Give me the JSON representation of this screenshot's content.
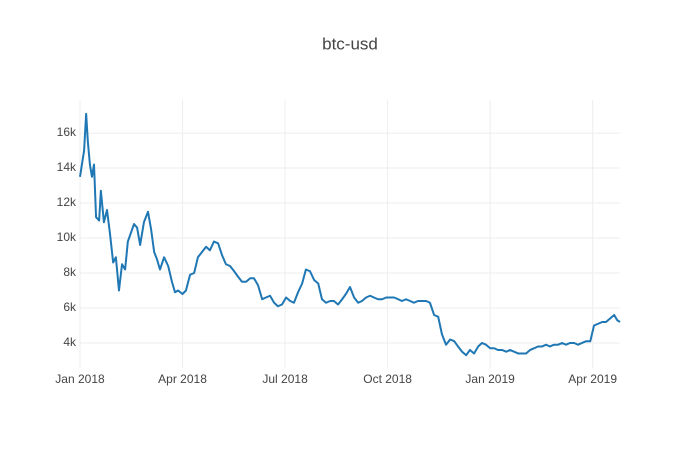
{
  "chart_data": {
    "type": "line",
    "title": "btc-usd",
    "x": [
      0,
      0.12,
      0.18,
      0.23,
      0.29,
      0.35,
      0.41,
      0.47,
      0.56,
      0.61,
      0.7,
      0.79,
      0.88,
      0.97,
      1.05,
      1.14,
      1.23,
      1.32,
      1.4,
      1.49,
      1.58,
      1.67,
      1.76,
      1.87,
      1.99,
      2.08,
      2.17,
      2.25,
      2.34,
      2.46,
      2.58,
      2.69,
      2.78,
      2.87,
      3.0,
      3.1,
      3.22,
      3.34,
      3.45,
      3.57,
      3.69,
      3.8,
      3.92,
      4.04,
      4.16,
      4.27,
      4.39,
      4.51,
      4.62,
      4.74,
      4.86,
      4.98,
      5.09,
      5.21,
      5.33,
      5.44,
      5.56,
      5.68,
      5.79,
      5.91,
      6.03,
      6.15,
      6.26,
      6.38,
      6.5,
      6.61,
      6.73,
      6.85,
      6.97,
      7.08,
      7.2,
      7.32,
      7.43,
      7.55,
      7.67,
      7.78,
      7.9,
      8.02,
      8.14,
      8.25,
      8.37,
      8.49,
      8.6,
      8.72,
      8.84,
      8.96,
      9.07,
      9.19,
      9.31,
      9.42,
      9.54,
      9.66,
      9.77,
      9.89,
      10.01,
      10.13,
      10.24,
      10.36,
      10.48,
      10.59,
      10.71,
      10.83,
      10.95,
      11.06,
      11.18,
      11.3,
      11.41,
      11.53,
      11.65,
      11.76,
      11.88,
      12.0,
      12.12,
      12.23,
      12.35,
      12.47,
      12.58,
      12.7,
      12.82,
      12.94,
      13.05,
      13.17,
      13.29,
      13.4,
      13.52,
      13.64,
      13.75,
      13.87,
      13.99,
      14.11,
      14.22,
      14.34,
      14.46,
      14.57,
      14.69,
      14.81,
      14.93,
      15.04,
      15.16,
      15.28,
      15.39,
      15.51,
      15.63,
      15.72,
      15.8
    ],
    "values": [
      13500,
      15000,
      17100,
      15500,
      14200,
      13500,
      14200,
      11200,
      11000,
      12700,
      10900,
      11600,
      10200,
      8600,
      8900,
      7000,
      8500,
      8200,
      9800,
      10300,
      10800,
      10600,
      9600,
      10900,
      11500,
      10500,
      9200,
      8800,
      8200,
      8900,
      8400,
      7500,
      6900,
      7000,
      6800,
      7000,
      7900,
      8000,
      8900,
      9200,
      9500,
      9300,
      9800,
      9700,
      9000,
      8500,
      8400,
      8100,
      7800,
      7500,
      7500,
      7700,
      7700,
      7300,
      6500,
      6600,
      6700,
      6300,
      6100,
      6200,
      6600,
      6400,
      6300,
      6900,
      7400,
      8200,
      8100,
      7600,
      7400,
      6500,
      6300,
      6400,
      6400,
      6200,
      6500,
      6800,
      7200,
      6600,
      6300,
      6400,
      6600,
      6700,
      6600,
      6500,
      6500,
      6600,
      6600,
      6600,
      6500,
      6400,
      6500,
      6400,
      6300,
      6400,
      6400,
      6400,
      6300,
      5600,
      5500,
      4500,
      3900,
      4200,
      4100,
      3800,
      3500,
      3300,
      3600,
      3400,
      3800,
      4000,
      3900,
      3700,
      3700,
      3600,
      3600,
      3500,
      3600,
      3500,
      3400,
      3400,
      3400,
      3600,
      3700,
      3800,
      3800,
      3900,
      3800,
      3900,
      3900,
      4000,
      3900,
      4000,
      4000,
      3900,
      4000,
      4100,
      4100,
      5000,
      5100,
      5200,
      5200,
      5400,
      5600,
      5300,
      5200
    ],
    "color": "#1f77b4",
    "xlim": [
      0,
      15.8
    ],
    "xticks": [
      {
        "value": 0,
        "label": "Jan 2018"
      },
      {
        "value": 3,
        "label": "Apr 2018"
      },
      {
        "value": 6,
        "label": "Jul 2018"
      },
      {
        "value": 9,
        "label": "Oct 2018"
      },
      {
        "value": 12,
        "label": "Jan 2019"
      },
      {
        "value": 15,
        "label": "Apr 2019"
      }
    ],
    "ylim": [
      2570,
      17890
    ],
    "yticks": [
      {
        "value": 4000,
        "label": "4k"
      },
      {
        "value": 6000,
        "label": "6k"
      },
      {
        "value": 8000,
        "label": "8k"
      },
      {
        "value": 10000,
        "label": "10k"
      },
      {
        "value": 12000,
        "label": "12k"
      },
      {
        "value": 14000,
        "label": "14k"
      },
      {
        "value": 16000,
        "label": "16k"
      }
    ],
    "grid": true
  }
}
